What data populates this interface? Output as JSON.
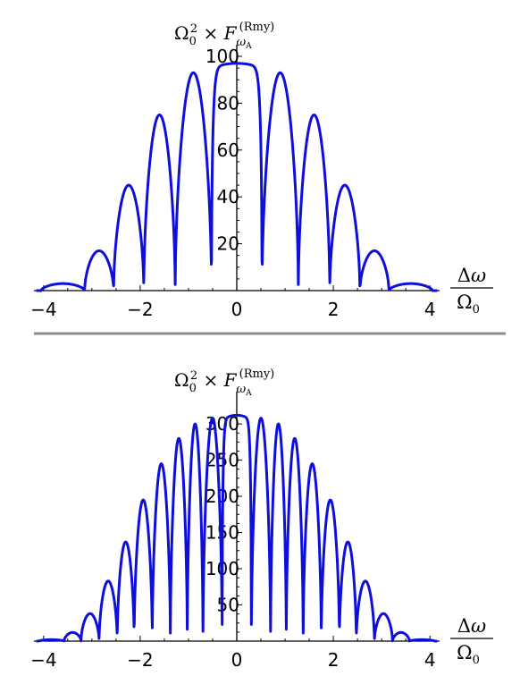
{
  "colors": {
    "curve": "#0f0fdc",
    "divider": "#8c8c8c"
  },
  "chart_data": [
    {
      "type": "line",
      "xlabel_num": "Δω",
      "xlabel_den": "Ω0",
      "ylabel": "Ω0² × F_ωA^(Rmy)",
      "xlim": [
        -4.2,
        4.2
      ],
      "ylim": [
        0,
        100
      ],
      "x_ticks": [
        "-4",
        "-2",
        "0",
        "2",
        "4"
      ],
      "y_ticks": [
        "20",
        "40",
        "60",
        "80",
        "100"
      ],
      "peak_value": 97,
      "lobes": [
        {
          "center": -3.45,
          "height": 3
        },
        {
          "center": -2.85,
          "height": 17
        },
        {
          "center": -2.25,
          "height": 45
        },
        {
          "center": -1.6,
          "height": 75
        },
        {
          "center": -0.95,
          "height": 93
        },
        {
          "center": 0.95,
          "height": 93
        },
        {
          "center": 1.6,
          "height": 75
        },
        {
          "center": 2.25,
          "height": 45
        },
        {
          "center": 2.85,
          "height": 17
        },
        {
          "center": 3.45,
          "height": 3
        }
      ]
    },
    {
      "type": "line",
      "xlabel_num": "Δω",
      "xlabel_den": "Ω0",
      "ylabel": "Ω0² × F_ωA^(Rmy)",
      "xlim": [
        -4.2,
        4.2
      ],
      "ylim": [
        0,
        310
      ],
      "x_ticks": [
        "-4",
        "-2",
        "0",
        "2",
        "4"
      ],
      "y_ticks": [
        "50",
        "100",
        "150",
        "200",
        "250",
        "300"
      ],
      "peak_value": 312,
      "lobes": [
        {
          "center": -3.75,
          "height": 2
        },
        {
          "center": -3.4,
          "height": 12
        },
        {
          "center": -3.05,
          "height": 38
        },
        {
          "center": -2.65,
          "height": 83
        },
        {
          "center": -2.3,
          "height": 137
        },
        {
          "center": -1.95,
          "height": 195
        },
        {
          "center": -1.55,
          "height": 245
        },
        {
          "center": -1.2,
          "height": 280
        },
        {
          "center": -0.85,
          "height": 300
        },
        {
          "center": -0.55,
          "height": 308
        },
        {
          "center": 0.55,
          "height": 308
        },
        {
          "center": 0.85,
          "height": 300
        },
        {
          "center": 1.2,
          "height": 280
        },
        {
          "center": 1.55,
          "height": 245
        },
        {
          "center": 1.95,
          "height": 195
        },
        {
          "center": 2.3,
          "height": 137
        },
        {
          "center": 2.65,
          "height": 83
        },
        {
          "center": 3.05,
          "height": 38
        },
        {
          "center": 3.4,
          "height": 12
        },
        {
          "center": 3.75,
          "height": 2
        }
      ]
    }
  ]
}
